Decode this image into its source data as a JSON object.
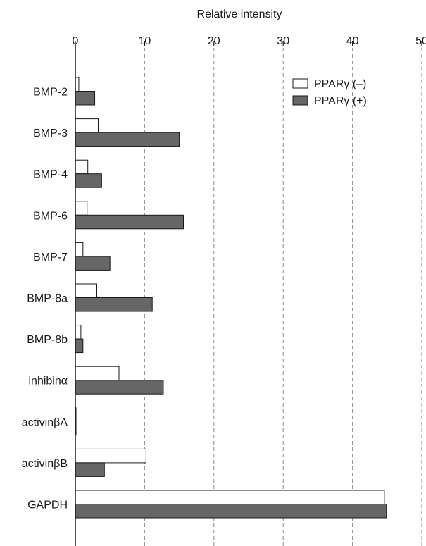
{
  "chart_data": {
    "type": "bar",
    "orientation": "horizontal",
    "title": "",
    "xlabel": "Relative intensity",
    "ylabel": "",
    "xlim": [
      0,
      50
    ],
    "x_ticks": [
      0,
      10,
      20,
      30,
      40,
      50
    ],
    "x_axis_position": "top",
    "grid": "vertical dashed",
    "legend_position": "top-right",
    "categories": [
      "BMP-2",
      "BMP-3",
      "BMP-4",
      "BMP-6",
      "BMP-7",
      "BMP-8a",
      "BMP-8b",
      "inhibinα",
      "activinβA",
      "activinβB",
      "GAPDH"
    ],
    "series": [
      {
        "name": "PPARγ (–)",
        "color": "#ffffff",
        "values": [
          0.5,
          3.3,
          1.8,
          1.7,
          1.1,
          3.1,
          0.8,
          6.3,
          0.1,
          10.2,
          44.6
        ]
      },
      {
        "name": "PPARγ (+)",
        "color": "#666666",
        "values": [
          2.8,
          15.0,
          3.8,
          15.6,
          5.0,
          11.1,
          1.1,
          12.7,
          0.1,
          4.2,
          44.9
        ]
      }
    ]
  }
}
